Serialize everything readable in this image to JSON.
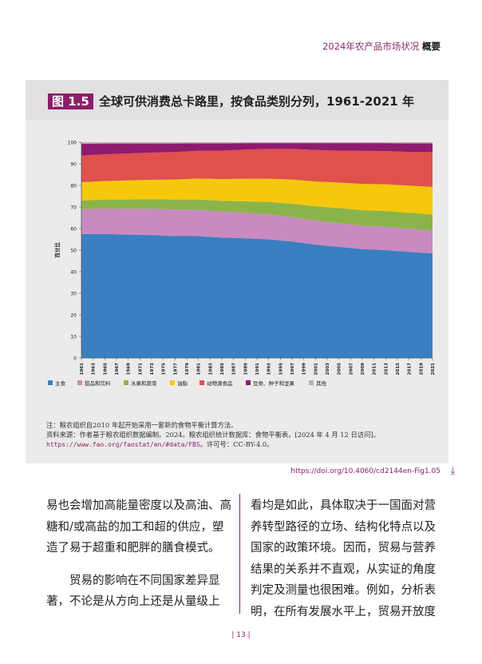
{
  "header": {
    "report": "2024年农产品市场状况",
    "section": "概要"
  },
  "figure": {
    "badge": "图 1.5",
    "title": "全球可供消费总卡路里，按食品类别分列，1961-2021 年"
  },
  "chart_data": {
    "type": "area",
    "stacked": true,
    "ylabel": "百分比",
    "ylim": [
      0,
      100
    ],
    "yticks": [
      0,
      10,
      20,
      30,
      40,
      50,
      60,
      70,
      80,
      90,
      100
    ],
    "x_tick_labels": [
      "1961",
      "1963",
      "1965",
      "1967",
      "1969",
      "1971",
      "1973",
      "1975",
      "1977",
      "1979",
      "1981",
      "1983",
      "1985",
      "1987",
      "1989",
      "1991",
      "1993",
      "1995",
      "1997",
      "1999",
      "2001",
      "2003",
      "2005",
      "2007",
      "2009",
      "2011",
      "2013",
      "2015",
      "2017",
      "2019",
      "2021"
    ],
    "x": [
      1961,
      1965,
      1969,
      1973,
      1977,
      1981,
      1985,
      1989,
      1993,
      1997,
      2001,
      2005,
      2009,
      2013,
      2017,
      2021
    ],
    "series": [
      {
        "name": "主食",
        "color": "#3a7fc1",
        "values": [
          57.5,
          57.5,
          57.2,
          57.0,
          56.5,
          56.5,
          55.8,
          55.5,
          55.0,
          54.0,
          52.5,
          51.5,
          50.5,
          50.0,
          49.2,
          48.5
        ]
      },
      {
        "name": "甜品和饮料",
        "color": "#c98ac0",
        "values": [
          11.5,
          11.8,
          12.0,
          12.2,
          12.3,
          12.2,
          12.0,
          11.8,
          11.5,
          11.3,
          11.2,
          11.0,
          10.8,
          10.8,
          10.7,
          10.5
        ]
      },
      {
        "name": "水果和蔬菜",
        "color": "#8ab44a",
        "values": [
          4.0,
          4.1,
          4.3,
          4.4,
          4.6,
          4.8,
          5.0,
          5.3,
          5.8,
          6.2,
          6.6,
          7.0,
          7.2,
          7.3,
          7.4,
          7.5
        ]
      },
      {
        "name": "油脂",
        "color": "#f6c80c",
        "values": [
          8.5,
          8.6,
          8.8,
          9.0,
          9.3,
          9.7,
          10.1,
          10.5,
          10.8,
          11.2,
          11.5,
          11.8,
          12.2,
          12.4,
          12.6,
          12.8
        ]
      },
      {
        "name": "动物源食品",
        "color": "#e0504c",
        "values": [
          12.3,
          12.4,
          12.5,
          12.6,
          12.8,
          12.8,
          13.2,
          13.5,
          13.8,
          14.2,
          14.6,
          14.8,
          15.3,
          15.4,
          15.6,
          16.2
        ]
      },
      {
        "name": "豆类、种子和坚果",
        "color": "#8e1b6e",
        "values": [
          5.5,
          5.0,
          4.6,
          4.2,
          3.9,
          3.5,
          3.4,
          3.0,
          2.7,
          2.7,
          3.2,
          3.5,
          3.6,
          3.7,
          4.0,
          4.0
        ]
      },
      {
        "name": "其他",
        "color": "#b3b3b3",
        "values": [
          0.7,
          0.6,
          0.6,
          0.6,
          0.6,
          0.5,
          0.5,
          0.4,
          0.4,
          0.4,
          0.4,
          0.4,
          0.4,
          0.4,
          0.5,
          0.5
        ]
      }
    ],
    "legend_position": "bottom",
    "grid": false
  },
  "notes": {
    "note1": "注：粮农组织自2010 年起开始采用一套新的食物平衡计算方法。",
    "note2": "资料来源：作者基于粮农组织数据编制。2024。粮农组织统计数据库：食物平衡表。[2024 年 4 月 12 日访问]。",
    "note3_url": "https://www.fao.org/faostat/en/#data/FBS",
    "note3_rest": "。许可号：CC-BY-4.0。"
  },
  "doi": "https://doi.org/10.4060/cd2144en-Fig1.05",
  "body": {
    "left_p1": "易也会增加高能量密度以及高油、高糖和/或高盐的加工和超的供应，塑造了易于超重和肥胖的膳食模式。",
    "left_p2": "贸易的影响在不同国家差异显著，不论是从方向上还是从量级上",
    "right_p1": "看均是如此，具体取决于一国面对营养转型路径的立场、结构化特点以及国家的政策环境。因而，贸易与营养结果的关系并不直观，从实证的角度判定及测量也很困难。例如，分析表明，在所有发展水平上，贸易开放度"
  },
  "page_number": "| 13 |"
}
